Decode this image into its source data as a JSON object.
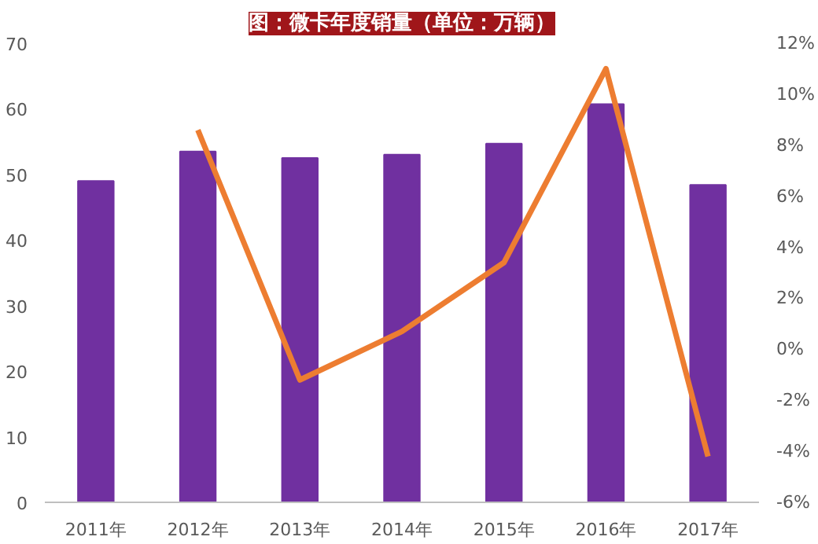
{
  "chart_data": {
    "type": "bar",
    "title": "图：微卡年度销量（单位：万辆）",
    "categories": [
      "2011年",
      "2012年",
      "2013年",
      "2014年",
      "2015年",
      "2016年",
      "2017年"
    ],
    "series": [
      {
        "color": "#7030a0",
        "values": [
          49,
          53.5,
          52.5,
          53,
          54.7,
          60.7,
          48.4
        ]
      },
      {
        "type": "line",
        "axis": "y2",
        "color": "#ed7d31",
        "values": [
          null,
          8.6,
          -1.2,
          0.7,
          3.4,
          11.0,
          -4.2
        ]
      }
    ],
    "ylim": [
      0,
      70
    ],
    "yticks": [
      0,
      10,
      20,
      30,
      40,
      50,
      60,
      70
    ],
    "y2lim": [
      -6,
      12
    ],
    "y2ticks": [
      {
        "value": -6,
        "label": "-6%"
      },
      {
        "value": -4,
        "label": "-4%"
      },
      {
        "value": -2,
        "label": "-2%"
      },
      {
        "value": 0,
        "label": "0%"
      },
      {
        "value": 2,
        "label": "2%"
      },
      {
        "value": 4,
        "label": "4%"
      },
      {
        "value": 6,
        "label": "6%"
      },
      {
        "value": 8,
        "label": "8%"
      },
      {
        "value": 10,
        "label": "10%"
      },
      {
        "value": 12,
        "label": "12%"
      }
    ],
    "grid": false
  }
}
